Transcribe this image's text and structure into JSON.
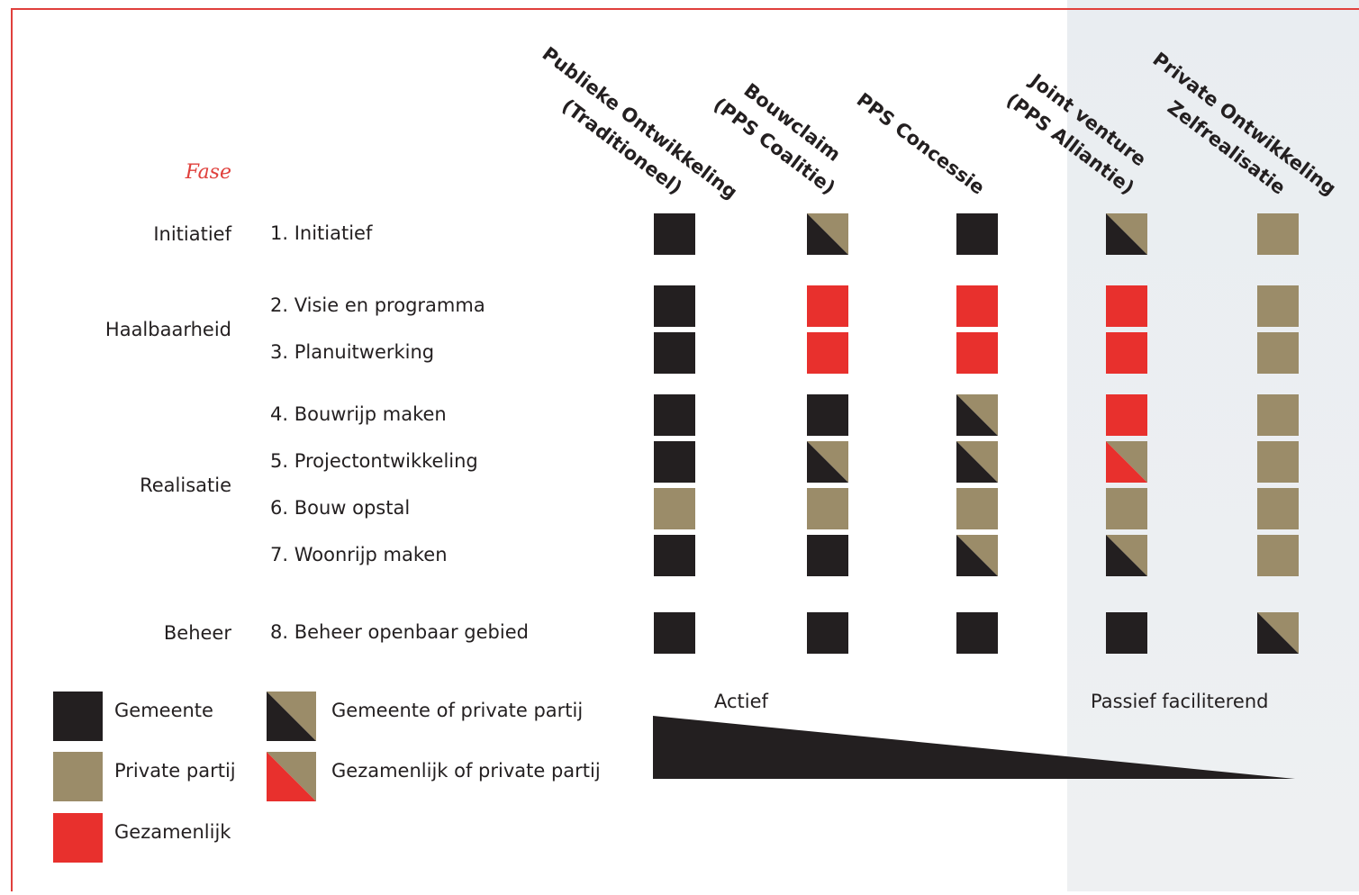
{
  "header": {
    "fase": "Fase"
  },
  "colors": {
    "gemeente": "#231f20",
    "private": "#9b8c69",
    "gezamenlijk": "#e8302d"
  },
  "columns": [
    {
      "lines": [
        "Publieke Ontwikkeling",
        "(Traditioneel)"
      ]
    },
    {
      "lines": [
        "Bouwclaim",
        "(PPS Coalitie)"
      ]
    },
    {
      "lines": [
        "PPS Concessie"
      ]
    },
    {
      "lines": [
        "Joint venture",
        "(PPS Alliantie)"
      ]
    },
    {
      "lines": [
        "Private Ontwikkeling",
        "Zelfrealisatie"
      ]
    }
  ],
  "phases": [
    {
      "label": "Initiatief",
      "rows": [
        0
      ]
    },
    {
      "label": "Haalbaarheid",
      "rows": [
        1,
        2
      ]
    },
    {
      "label": "Realisatie",
      "rows": [
        3,
        4,
        5,
        6
      ]
    },
    {
      "label": "Beheer",
      "rows": [
        7
      ]
    }
  ],
  "rows": [
    {
      "label": "1. Initiatief",
      "cells": [
        0,
        3,
        0,
        3,
        1
      ]
    },
    {
      "label": "2. Visie en programma",
      "cells": [
        0,
        2,
        2,
        2,
        1
      ]
    },
    {
      "label": "3. Planuitwerking",
      "cells": [
        0,
        2,
        2,
        2,
        1
      ]
    },
    {
      "label": "4. Bouwrijp maken",
      "cells": [
        0,
        0,
        3,
        2,
        1
      ]
    },
    {
      "label": "5. Projectontwikkeling",
      "cells": [
        0,
        3,
        3,
        4,
        1
      ]
    },
    {
      "label": "6. Bouw opstal",
      "cells": [
        1,
        1,
        1,
        1,
        1
      ]
    },
    {
      "label": "7. Woonrijp maken",
      "cells": [
        0,
        0,
        3,
        3,
        1
      ]
    },
    {
      "label": "8. Beheer openbaar gebied",
      "cells": [
        0,
        0,
        0,
        0,
        3
      ]
    }
  ],
  "legend": [
    {
      "label": "Gemeente",
      "fill": [
        "gemeente"
      ]
    },
    {
      "label": "Private partij",
      "fill": [
        "private"
      ]
    },
    {
      "label": "Gezamenlijk",
      "fill": [
        "gezamenlijk"
      ]
    },
    {
      "label": "Gemeente of private partij",
      "fill": [
        "gemeente",
        "private"
      ]
    },
    {
      "label": "Gezamenlijk of private partij",
      "fill": [
        "gezamenlijk",
        "private"
      ]
    }
  ],
  "scale": {
    "left": "Actief",
    "right": "Passief faciliterend"
  }
}
